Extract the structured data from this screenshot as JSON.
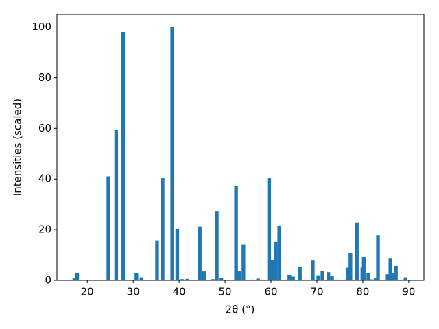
{
  "chart_data": {
    "type": "bar",
    "xlabel": "2θ (°)",
    "ylabel": "Intensities (scaled)",
    "x": [
      17.2,
      17.8,
      24.6,
      26.3,
      27.8,
      30.7,
      31.8,
      35.2,
      36.4,
      38.5,
      39.6,
      40.6,
      41.8,
      44.5,
      45.4,
      47.3,
      48.2,
      49.2,
      52.4,
      53.1,
      54.0,
      56.0,
      57.2,
      59.6,
      60.3,
      61.0,
      61.8,
      64.0,
      64.8,
      66.3,
      67.5,
      69.1,
      70.3,
      71.2,
      72.5,
      73.3,
      74.5,
      76.4,
      76.8,
      77.3,
      78.7,
      79.9,
      80.2,
      81.2,
      81.9,
      82.8,
      83.3,
      85.4,
      86.0,
      86.6,
      87.2,
      88.6,
      89.3
    ],
    "values": [
      0.8,
      3,
      41,
      59.3,
      98.2,
      2.7,
      1.2,
      15.8,
      40.3,
      100,
      20.3,
      0.5,
      0.6,
      21.2,
      3.5,
      0.5,
      27.3,
      0.8,
      37.3,
      3.5,
      14.2,
      0.3,
      0.7,
      40.3,
      8,
      15.2,
      21.7,
      2.2,
      1.5,
      5.2,
      0.3,
      7.8,
      2,
      3.8,
      3.2,
      1.6,
      0.3,
      0.3,
      5,
      10.8,
      22.8,
      5,
      9.2,
      2.7,
      0.4,
      0.8,
      17.8,
      2.4,
      8.6,
      2.8,
      5.7,
      0.3,
      1.2
    ],
    "color": "#1f77b4",
    "xlim": [
      13.4,
      93.3
    ],
    "xticks": [
      20,
      30,
      40,
      50,
      60,
      70,
      80,
      90
    ],
    "ylim": [
      0,
      105
    ],
    "yticks": [
      0,
      20,
      40,
      60,
      80,
      100
    ],
    "grid": false
  }
}
